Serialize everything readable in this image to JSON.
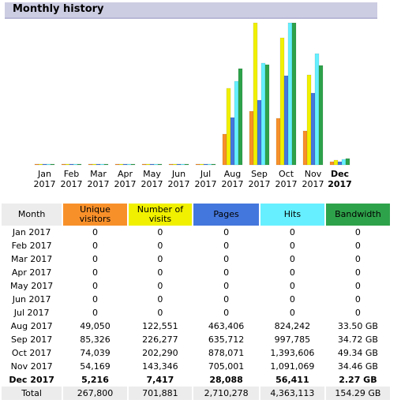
{
  "section": {
    "title": "Monthly history"
  },
  "colors": {
    "unique_visitors": "#f8902a",
    "visits": "#f0f000",
    "pages": "#4477dd",
    "hits": "#66f0ff",
    "bandwidth": "#2ea24a"
  },
  "table": {
    "headers": [
      "Month",
      "Unique visitors",
      "Number of visits",
      "Pages",
      "Hits",
      "Bandwidth"
    ],
    "rows": [
      [
        "Jan 2017",
        "0",
        "0",
        "0",
        "0",
        "0"
      ],
      [
        "Feb 2017",
        "0",
        "0",
        "0",
        "0",
        "0"
      ],
      [
        "Mar 2017",
        "0",
        "0",
        "0",
        "0",
        "0"
      ],
      [
        "Apr 2017",
        "0",
        "0",
        "0",
        "0",
        "0"
      ],
      [
        "May 2017",
        "0",
        "0",
        "0",
        "0",
        "0"
      ],
      [
        "Jun 2017",
        "0",
        "0",
        "0",
        "0",
        "0"
      ],
      [
        "Jul 2017",
        "0",
        "0",
        "0",
        "0",
        "0"
      ],
      [
        "Aug 2017",
        "49,050",
        "122,551",
        "463,406",
        "824,242",
        "33.50 GB"
      ],
      [
        "Sep 2017",
        "85,326",
        "226,277",
        "635,712",
        "997,785",
        "34.72 GB"
      ],
      [
        "Oct 2017",
        "74,039",
        "202,290",
        "878,071",
        "1,393,606",
        "49.34 GB"
      ],
      [
        "Nov 2017",
        "54,169",
        "143,346",
        "705,001",
        "1,091,069",
        "34.46 GB"
      ],
      [
        "Dec 2017",
        "5,216",
        "7,417",
        "28,088",
        "56,411",
        "2.27 GB"
      ]
    ],
    "current_row": 11,
    "total": [
      "Total",
      "267,800",
      "701,881",
      "2,710,278",
      "4,363,113",
      "154.29 GB"
    ]
  },
  "chart_data": {
    "type": "bar",
    "categories": [
      [
        "Jan",
        "2017"
      ],
      [
        "Feb",
        "2017"
      ],
      [
        "Mar",
        "2017"
      ],
      [
        "Apr",
        "2017"
      ],
      [
        "May",
        "2017"
      ],
      [
        "Jun",
        "2017"
      ],
      [
        "Jul",
        "2017"
      ],
      [
        "Aug",
        "2017"
      ],
      [
        "Sep",
        "2017"
      ],
      [
        "Oct",
        "2017"
      ],
      [
        "Nov",
        "2017"
      ],
      [
        "Dec",
        "2017"
      ]
    ],
    "highlight_category": 11,
    "scale_groups": [
      [
        0,
        1
      ],
      [
        2,
        3
      ],
      [
        4
      ]
    ],
    "series": [
      {
        "name": "Unique visitors",
        "color": "#f8902a",
        "values": [
          0,
          0,
          0,
          0,
          0,
          0,
          0,
          49050,
          85326,
          74039,
          54169,
          5216
        ]
      },
      {
        "name": "Number of visits",
        "color": "#f0f000",
        "values": [
          0,
          0,
          0,
          0,
          0,
          0,
          0,
          122551,
          226277,
          202290,
          143346,
          7417
        ]
      },
      {
        "name": "Pages",
        "color": "#4477dd",
        "values": [
          0,
          0,
          0,
          0,
          0,
          0,
          0,
          463406,
          635712,
          878071,
          705001,
          28088
        ]
      },
      {
        "name": "Hits",
        "color": "#66f0ff",
        "values": [
          0,
          0,
          0,
          0,
          0,
          0,
          0,
          824242,
          997785,
          1393606,
          1091069,
          56411
        ]
      },
      {
        "name": "Bandwidth",
        "color": "#2ea24a",
        "values": [
          0,
          0,
          0,
          0,
          0,
          0,
          0,
          33.5,
          34.72,
          49.34,
          34.46,
          2.27
        ]
      }
    ]
  }
}
